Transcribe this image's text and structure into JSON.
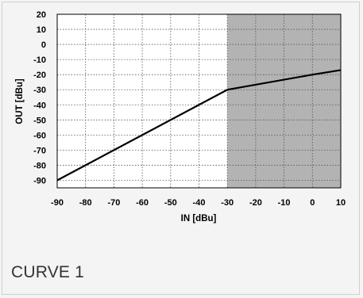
{
  "caption": "CURVE 1",
  "chart_data": {
    "type": "line",
    "xlabel": "IN [dBu]",
    "ylabel": "OUT [dBu]",
    "xlim": [
      -90,
      10
    ],
    "ylim": [
      -95,
      20
    ],
    "x_ticks": [
      -90,
      -80,
      -70,
      -60,
      -50,
      -40,
      -30,
      -20,
      -10,
      0,
      10
    ],
    "y_ticks": [
      20,
      10,
      0,
      -10,
      -20,
      -30,
      -40,
      -50,
      -60,
      -70,
      -80,
      -90
    ],
    "grid": true,
    "series": [
      {
        "x": [
          -90,
          -30,
          0,
          10
        ],
        "y": [
          -90,
          -30,
          -20,
          -17
        ]
      }
    ],
    "shaded_region": {
      "x": [
        -30,
        10
      ]
    },
    "colors": {
      "line": "#000000",
      "shade": "#b3b3b3",
      "grid": "#555555",
      "plot_bg": "#ffffff"
    }
  }
}
